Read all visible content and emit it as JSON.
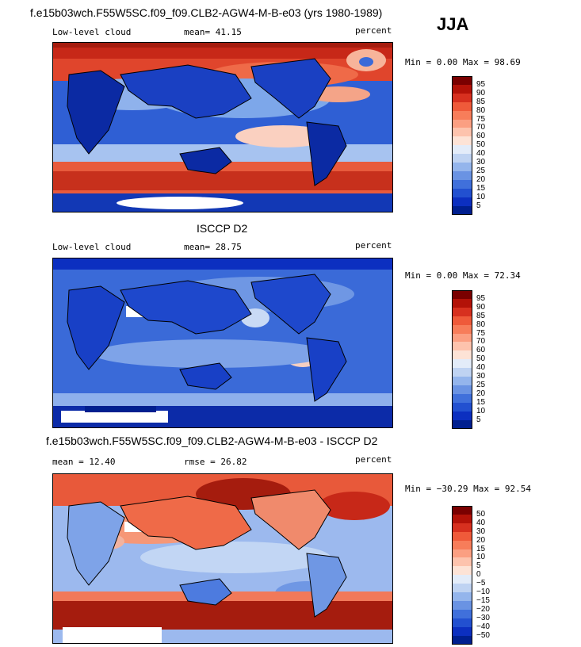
{
  "header": {
    "title": "f.e15b03wch.F55W5SC.f09_f09.CLB2-AGW4-M-B-e03 (yrs 1980-1989)",
    "season": "JJA"
  },
  "chart_data": [
    {
      "type": "heatmap",
      "title": "",
      "left_label": "Low-level cloud",
      "stat_label": "mean=  41.15",
      "units": "percent",
      "minmax": "Min =    0.00 Max =  98.69",
      "colorbar": {
        "ticks": [
          "95",
          "90",
          "85",
          "80",
          "75",
          "70",
          "60",
          "50",
          "40",
          "30",
          "25",
          "20",
          "15",
          "10",
          "5"
        ],
        "colors": [
          "#7a0000",
          "#b31208",
          "#d7301f",
          "#ef5a3a",
          "#f77d5a",
          "#fb9f82",
          "#fdc3ad",
          "#fde3d6",
          "#e3ecf9",
          "#bfd3f2",
          "#94b5ec",
          "#6a93e3",
          "#4070db",
          "#2250d0",
          "#0c2fc0",
          "#001f8f"
        ]
      }
    },
    {
      "type": "heatmap",
      "title": "ISCCP D2",
      "left_label": "Low-level cloud",
      "stat_label": "mean=  28.75",
      "units": "percent",
      "minmax": "Min =    0.00 Max =  72.34",
      "colorbar": {
        "ticks": [
          "95",
          "90",
          "85",
          "80",
          "75",
          "70",
          "60",
          "50",
          "40",
          "30",
          "25",
          "20",
          "15",
          "10",
          "5"
        ],
        "colors": [
          "#7a0000",
          "#b31208",
          "#d7301f",
          "#ef5a3a",
          "#f77d5a",
          "#fb9f82",
          "#fdc3ad",
          "#fde3d6",
          "#e3ecf9",
          "#bfd3f2",
          "#94b5ec",
          "#6a93e3",
          "#4070db",
          "#2250d0",
          "#0c2fc0",
          "#001f8f"
        ]
      }
    },
    {
      "type": "heatmap",
      "title": "f.e15b03wch.F55W5SC.f09_f09.CLB2-AGW4-M-B-e03 - ISCCP D2",
      "left_label": "mean =  12.40",
      "stat_label": "rmse =  26.82",
      "units": "percent",
      "minmax": "Min = −30.29 Max =  92.54",
      "colorbar": {
        "ticks": [
          "50",
          "40",
          "30",
          "20",
          "15",
          "10",
          "5",
          "0",
          "−5",
          "−10",
          "−15",
          "−20",
          "−30",
          "−40",
          "−50"
        ],
        "colors": [
          "#7a0000",
          "#b31208",
          "#d7301f",
          "#ef5a3a",
          "#f77d5a",
          "#fb9f82",
          "#fdc3ad",
          "#fde3d6",
          "#e3ecf9",
          "#bfd3f2",
          "#94b5ec",
          "#6a93e3",
          "#4070db",
          "#2250d0",
          "#0c2fc0",
          "#001f8f"
        ]
      }
    }
  ]
}
